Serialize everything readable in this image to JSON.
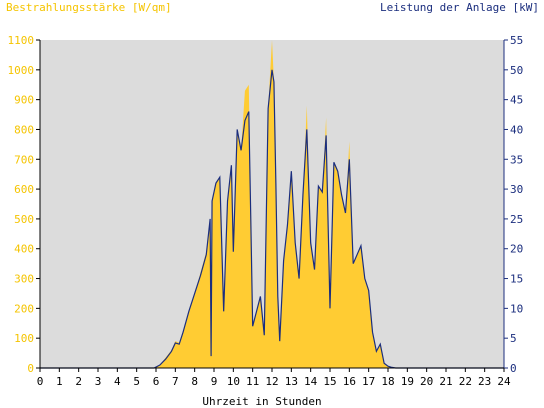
{
  "chart_data": {
    "type": "area",
    "title": "",
    "left_axis_label": "Bestrahlungsstärke [W/qm]",
    "right_axis_label": "Leistung der Anlage [kW]",
    "xlabel": "Uhrzeit in Stunden",
    "x_ticks": [
      "0",
      "1",
      "2",
      "3",
      "4",
      "5",
      "6",
      "7",
      "8",
      "9",
      "10",
      "11",
      "12",
      "13",
      "14",
      "15",
      "16",
      "17",
      "18",
      "19",
      "20",
      "21",
      "22",
      "23",
      "24"
    ],
    "y_left_ticks": [
      "0",
      "100",
      "200",
      "300",
      "400",
      "500",
      "600",
      "700",
      "800",
      "900",
      "1000",
      "1100"
    ],
    "y_right_ticks": [
      "0",
      "5",
      "10",
      "15",
      "20",
      "25",
      "30",
      "35",
      "40",
      "45",
      "50",
      "55"
    ],
    "xlim": [
      0,
      24
    ],
    "ylim_left": [
      0,
      1100
    ],
    "ylim_right": [
      0,
      55
    ],
    "grid": false,
    "colors": {
      "plot_bg": "#dcdcdc",
      "irradiance": "#ffcc33",
      "power": "#1b2e7e",
      "left_axis": "#f5c400",
      "right_axis": "#1b2e7e"
    },
    "series": [
      {
        "name": "Bestrahlungsstärke [W/qm]",
        "axis": "left",
        "style": "filled-area",
        "x": [
          0,
          5.9,
          6.2,
          6.5,
          6.8,
          7.0,
          7.2,
          7.4,
          7.7,
          8.0,
          8.3,
          8.6,
          8.8,
          8.85,
          8.9,
          9.1,
          9.3,
          9.5,
          9.7,
          9.9,
          10.0,
          10.2,
          10.4,
          10.6,
          10.8,
          10.9,
          11.0,
          11.2,
          11.4,
          11.6,
          11.8,
          12.0,
          12.1,
          12.2,
          12.3,
          12.4,
          12.6,
          12.8,
          13.0,
          13.2,
          13.4,
          13.6,
          13.8,
          14.0,
          14.2,
          14.4,
          14.6,
          14.8,
          15.0,
          15.2,
          15.4,
          15.6,
          15.8,
          16.0,
          16.2,
          16.4,
          16.6,
          16.8,
          17.0,
          17.2,
          17.4,
          17.6,
          17.8,
          18.0,
          18.2,
          18.4,
          18.6,
          18.8,
          19.0,
          19.3,
          19.6,
          24
        ],
        "y": [
          0,
          0,
          10,
          35,
          60,
          90,
          85,
          120,
          190,
          250,
          320,
          390,
          500,
          40,
          560,
          620,
          640,
          190,
          560,
          680,
          390,
          800,
          730,
          930,
          950,
          510,
          140,
          190,
          240,
          110,
          870,
          1100,
          960,
          620,
          240,
          90,
          360,
          480,
          660,
          420,
          300,
          580,
          880,
          420,
          330,
          610,
          590,
          840,
          200,
          690,
          660,
          580,
          520,
          760,
          350,
          380,
          410,
          300,
          260,
          120,
          55,
          80,
          15,
          5,
          2,
          0,
          0,
          0,
          0,
          0,
          0,
          0
        ]
      },
      {
        "name": "Leistung der Anlage [kW]",
        "axis": "right",
        "style": "line",
        "x": [
          0,
          5.9,
          6.2,
          6.5,
          6.8,
          7.0,
          7.2,
          7.4,
          7.7,
          8.0,
          8.3,
          8.6,
          8.8,
          8.85,
          8.9,
          9.1,
          9.3,
          9.5,
          9.7,
          9.9,
          10.0,
          10.2,
          10.4,
          10.6,
          10.8,
          10.9,
          11.0,
          11.2,
          11.4,
          11.6,
          11.8,
          12.0,
          12.1,
          12.2,
          12.3,
          12.4,
          12.6,
          12.8,
          13.0,
          13.2,
          13.4,
          13.6,
          13.8,
          14.0,
          14.2,
          14.4,
          14.6,
          14.8,
          15.0,
          15.2,
          15.4,
          15.6,
          15.8,
          16.0,
          16.2,
          16.4,
          16.6,
          16.8,
          17.0,
          17.2,
          17.4,
          17.6,
          17.8,
          18.0,
          18.2,
          18.4,
          18.6,
          18.8,
          19.0,
          19.3,
          19.6,
          24
        ],
        "y": [
          0,
          0,
          0.5,
          1.5,
          2.8,
          4.2,
          4.0,
          6.0,
          9.5,
          12.5,
          15.5,
          19.0,
          25.0,
          2.0,
          28.0,
          31.0,
          32.0,
          9.5,
          28.0,
          34.0,
          19.5,
          40.0,
          36.5,
          41.5,
          43.0,
          25.5,
          7.0,
          9.5,
          12.0,
          5.5,
          43.5,
          50.0,
          48.0,
          31.0,
          12.0,
          4.5,
          18.0,
          24.0,
          33.0,
          21.0,
          15.0,
          29.0,
          40.0,
          21.0,
          16.5,
          30.5,
          29.5,
          39.0,
          10.0,
          34.5,
          33.0,
          29.0,
          26.0,
          35.0,
          17.5,
          19.0,
          20.5,
          15.0,
          13.0,
          6.0,
          2.8,
          4.0,
          0.8,
          0.3,
          0.1,
          0,
          0,
          0,
          0,
          0,
          0,
          0
        ]
      }
    ]
  }
}
